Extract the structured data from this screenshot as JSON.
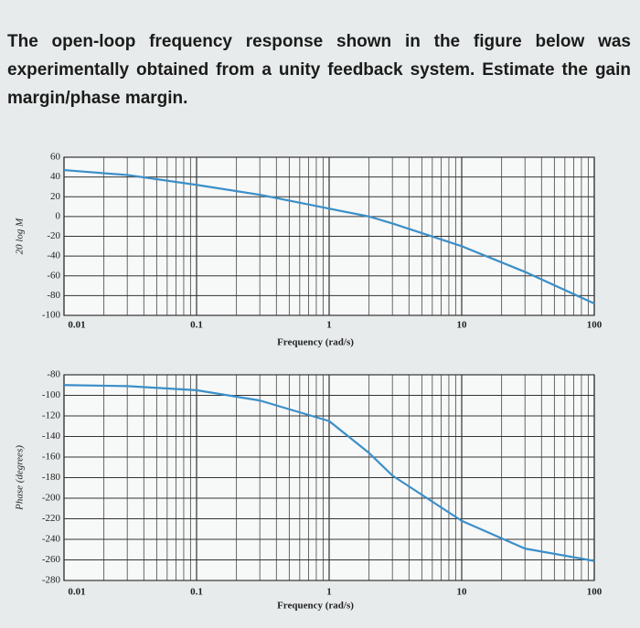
{
  "question": "The open-loop frequency response shown in the figure below was experimentally obtained from a unity feedback system. Estimate the gain margin/phase margin.",
  "chart_data": [
    {
      "type": "line",
      "ylabel": "20 log M",
      "xlabel": "Frequency (rad/s)",
      "log_x": true,
      "grid": true,
      "x": [
        0.01,
        0.03,
        0.1,
        0.3,
        1,
        2,
        3,
        10,
        30,
        100
      ],
      "values": [
        47,
        42,
        32,
        22,
        8,
        0,
        -7,
        -30,
        -56,
        -88
      ],
      "color": "#3a8fc8",
      "xlim": [
        0.01,
        100
      ],
      "xticks": [
        0.01,
        0.1,
        1,
        10,
        100
      ],
      "ylim": [
        -100,
        60
      ],
      "yticks": [
        -100,
        -80,
        -60,
        -40,
        -20,
        0,
        20,
        40,
        60
      ]
    },
    {
      "type": "line",
      "ylabel": "Phase (degrees)",
      "xlabel": "Frequency (rad/s)",
      "log_x": true,
      "grid": true,
      "x": [
        0.01,
        0.03,
        0.1,
        0.3,
        1,
        2,
        3,
        10,
        30,
        100
      ],
      "values": [
        -90,
        -91,
        -95,
        -105,
        -125,
        -156,
        -178,
        -222,
        -249,
        -261
      ],
      "color": "#3a8fc8",
      "xlim": [
        0.01,
        100
      ],
      "xticks": [
        0.01,
        0.1,
        1,
        10,
        100
      ],
      "ylim": [
        -280,
        -80
      ],
      "yticks": [
        -280,
        -260,
        -240,
        -220,
        -200,
        -180,
        -160,
        -140,
        -120,
        -100,
        -80
      ]
    }
  ]
}
